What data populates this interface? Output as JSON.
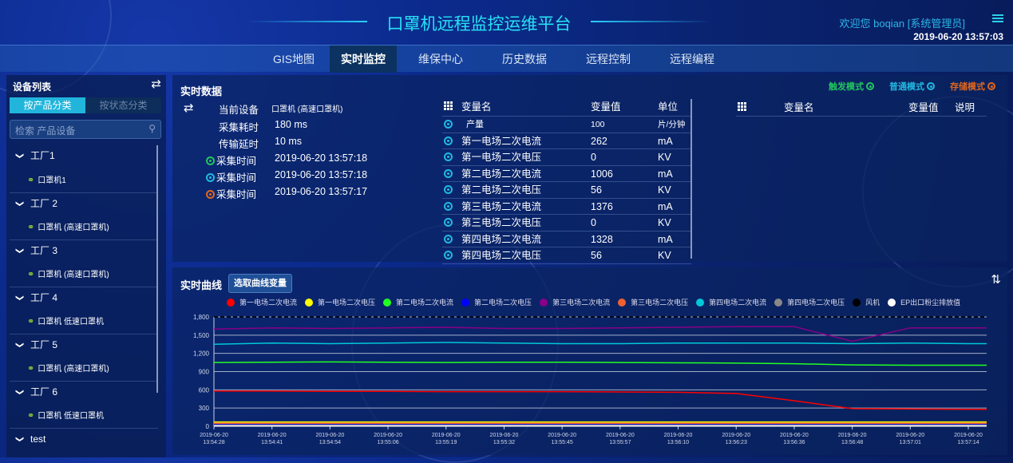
{
  "header": {
    "title": "口罩机远程监控运维平台",
    "welcome": "欢迎您  boqian [系统管理员]",
    "datetime": "2019-06-20 13:57:03",
    "menu_icon": "list-icon"
  },
  "nav": {
    "items": [
      "GIS地图",
      "实时监控",
      "维保中心",
      "历史数据",
      "远程控制",
      "远程编程"
    ],
    "active": "实时监控"
  },
  "sidebar": {
    "title": "设备列表",
    "tabs": [
      "按产品分类",
      "按状态分类"
    ],
    "active_tab": "按产品分类",
    "search_placeholder": "检索 产品设备",
    "tree": [
      {
        "name": "工厂1",
        "device": "口罩机1"
      },
      {
        "name": "工厂 2",
        "device": "口罩机 (高速口罩机)"
      },
      {
        "name": "工厂 3",
        "device": "口罩机 (高速口罩机)"
      },
      {
        "name": "工厂 4",
        "device": "口罩机 低速口罩机"
      },
      {
        "name": "工厂 5",
        "device": "口罩机 (高速口罩机)"
      },
      {
        "name": "工厂 6",
        "device": "口罩机 低速口罩机"
      },
      {
        "name": "test",
        "device": null
      }
    ]
  },
  "realtime": {
    "title": "实时数据",
    "modes": [
      {
        "label": "触发模式",
        "color": "#22c55e"
      },
      {
        "label": "普通模式",
        "color": "#22b8e0"
      },
      {
        "label": "存储模式",
        "color": "#e0661c"
      }
    ],
    "info": {
      "device_label": "当前设备",
      "device": "口罩机 (高速口罩机)",
      "collect_cost_label": "采集耗时",
      "collect_cost": "180 ms",
      "delay_label": "传输延时",
      "delay": "10 ms",
      "times": [
        {
          "label": "采集时间",
          "value": "2019-06-20 13:57:18",
          "color": "#22c55e"
        },
        {
          "label": "采集时间",
          "value": "2019-06-20 13:57:18",
          "color": "#22b8e0"
        },
        {
          "label": "采集时间",
          "value": "2019-06-20 13:57:17",
          "color": "#e0661c"
        }
      ]
    },
    "table": {
      "headers": [
        "变量名",
        "变量值",
        "单位"
      ],
      "rows": [
        [
          "产量",
          "100",
          "片/分钟"
        ],
        [
          "第一电场二次电流",
          "262",
          "mA"
        ],
        [
          "第一电场二次电压",
          "0",
          "KV"
        ],
        [
          "第二电场二次电流",
          "1006",
          "mA"
        ],
        [
          "第二电场二次电压",
          "56",
          "KV"
        ],
        [
          "第三电场二次电流",
          "1376",
          "mA"
        ],
        [
          "第三电场二次电压",
          "0",
          "KV"
        ],
        [
          "第四电场二次电流",
          "1328",
          "mA"
        ],
        [
          "第四电场二次电压",
          "56",
          "KV"
        ]
      ]
    },
    "table2": {
      "headers": [
        "变量名",
        "变量值",
        "说明"
      ]
    }
  },
  "curve": {
    "title": "实时曲线",
    "select_button": "选取曲线变量"
  },
  "chart_data": {
    "type": "line",
    "ylim": [
      0,
      1800
    ],
    "yticks": [
      "0",
      "300",
      "600",
      "900",
      "1,200",
      "1,500",
      "1,800"
    ],
    "ytick_values": [
      0,
      300,
      600,
      900,
      1200,
      1500,
      1800
    ],
    "grid": true,
    "legend_placement": "top",
    "x": [
      "2019-06-20 13:54:28",
      "2019-06-20 13:54:41",
      "2019-06-20 13:54:54",
      "2019-06-20 13:55:06",
      "2019-06-20 13:55:19",
      "2019-06-20 13:55:32",
      "2019-06-20 13:55:45",
      "2019-06-20 13:55:57",
      "2019-06-20 13:56:10",
      "2019-06-20 13:56:23",
      "2019-06-20 13:56:36",
      "2019-06-20 13:56:48",
      "2019-06-20 13:57:01",
      "2019-06-20 13:57:14"
    ],
    "series": [
      {
        "name": "第一电场二次电流",
        "color": "#ff0000",
        "values": [
          580,
          580,
          575,
          575,
          570,
          570,
          570,
          565,
          560,
          540,
          420,
          290,
          285,
          280
        ]
      },
      {
        "name": "第一电场二次电压",
        "color": "#ffff00",
        "values": [
          70,
          70,
          70,
          70,
          70,
          70,
          70,
          70,
          70,
          70,
          70,
          70,
          70,
          70
        ]
      },
      {
        "name": "第二电场二次电流",
        "color": "#22ff22",
        "values": [
          1050,
          1055,
          1060,
          1055,
          1050,
          1055,
          1055,
          1050,
          1045,
          1040,
          1030,
          1010,
          1005,
          1005
        ]
      },
      {
        "name": "第二电场二次电压",
        "color": "#0000ff",
        "values": [
          35,
          35,
          35,
          35,
          35,
          35,
          35,
          35,
          35,
          35,
          35,
          35,
          35,
          35
        ]
      },
      {
        "name": "第三电场二次电流",
        "color": "#880088",
        "values": [
          1600,
          1620,
          1610,
          1620,
          1630,
          1610,
          1610,
          1620,
          1630,
          1640,
          1640,
          1400,
          1620,
          1620
        ]
      },
      {
        "name": "第三电场二次电压",
        "color": "#f06030",
        "values": [
          50,
          50,
          50,
          50,
          50,
          50,
          50,
          50,
          50,
          50,
          50,
          50,
          50,
          50
        ]
      },
      {
        "name": "第四电场二次电流",
        "color": "#00c8d8",
        "values": [
          1350,
          1370,
          1360,
          1370,
          1380,
          1370,
          1360,
          1360,
          1370,
          1370,
          1370,
          1360,
          1370,
          1360
        ]
      },
      {
        "name": "第四电场二次电压",
        "color": "#888888",
        "values": [
          20,
          20,
          20,
          20,
          20,
          20,
          20,
          20,
          20,
          20,
          20,
          20,
          20,
          20
        ]
      },
      {
        "name": "风机",
        "color": "#000000",
        "values": [
          1800,
          1800,
          1800,
          1800,
          1800,
          1800,
          1800,
          1800,
          1800,
          1800,
          1800,
          1800,
          1800,
          1800
        ]
      },
      {
        "name": "EP出口粉尘排放值",
        "color": "#ffffff",
        "values": [
          5,
          5,
          5,
          5,
          5,
          5,
          5,
          5,
          5,
          5,
          5,
          5,
          5,
          5
        ]
      }
    ]
  }
}
